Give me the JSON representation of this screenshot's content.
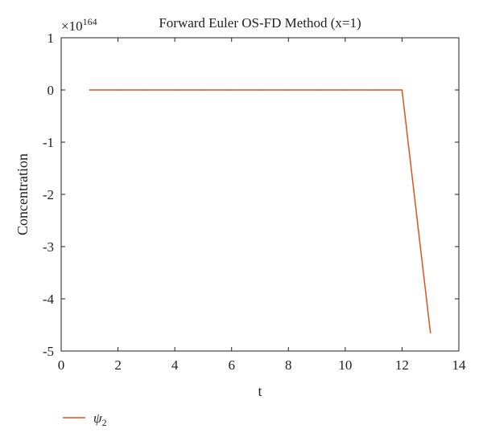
{
  "chart_data": {
    "type": "line",
    "title": "Forward Euler OS-FD Method (x=1)",
    "xlabel": "t",
    "ylabel": "Concentration",
    "y_multiplier": {
      "base": "×10",
      "exponent": "164"
    },
    "xlim": [
      0,
      14
    ],
    "ylim": [
      -5,
      1
    ],
    "xticks": [
      0,
      2,
      4,
      6,
      8,
      10,
      12,
      14
    ],
    "xtick_labels": [
      "0",
      "2",
      "4",
      "6",
      "8",
      "10",
      "12",
      "14"
    ],
    "yticks": [
      1,
      0,
      -1,
      -2,
      -3,
      -4,
      -5
    ],
    "ytick_labels": [
      "1",
      "0",
      "-1",
      "-2",
      "-3",
      "-4",
      "-5"
    ],
    "grid": false,
    "legend_position": "bottom-left",
    "series": [
      {
        "name": "ψ2",
        "legend_base": "ψ",
        "legend_sub": "2",
        "color": "#d9541e",
        "x": [
          1,
          2,
          3,
          4,
          5,
          6,
          7,
          8,
          9,
          10,
          11,
          12,
          13
        ],
        "y": [
          0,
          0,
          0,
          0,
          0,
          0,
          0,
          0,
          0,
          0,
          0,
          0,
          -4.65
        ]
      }
    ]
  }
}
